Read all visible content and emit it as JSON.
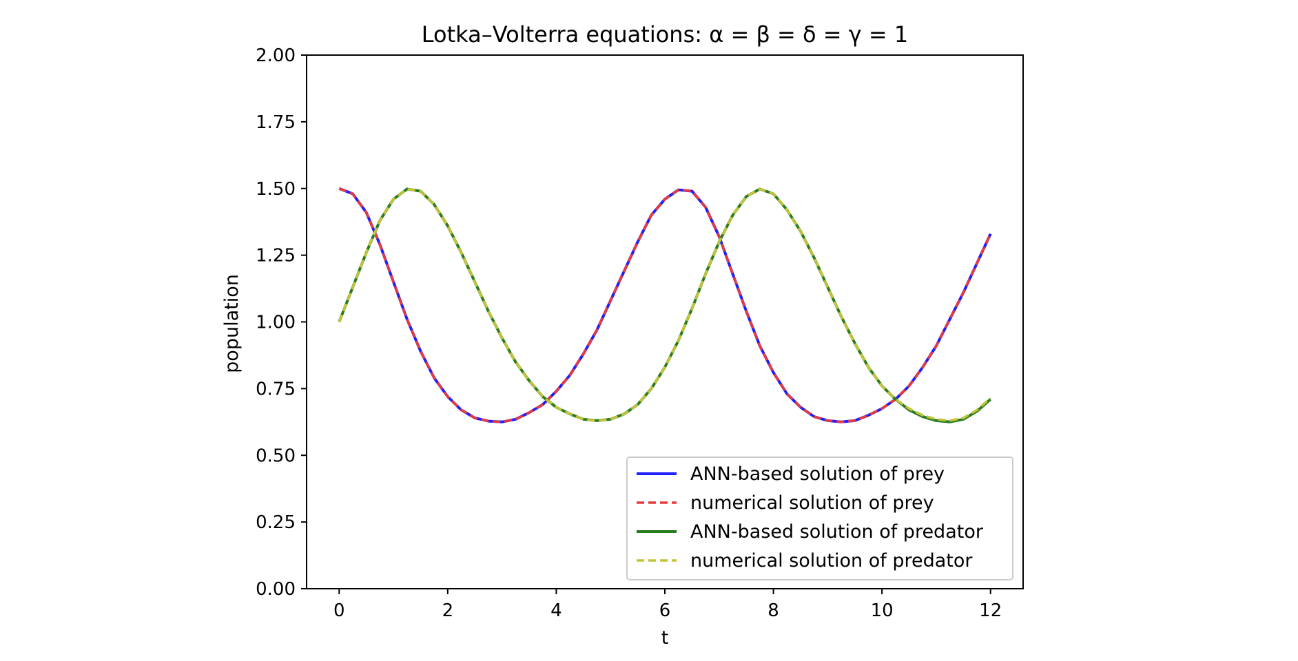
{
  "chart_data": {
    "type": "line",
    "title": "Lotka–Volterra equations: α = β = δ = γ = 1",
    "xlabel": "t",
    "ylabel": "population",
    "xlim": [
      -0.6,
      12.6
    ],
    "ylim": [
      0,
      2
    ],
    "xticks": [
      0,
      2,
      4,
      6,
      8,
      10,
      12
    ],
    "yticks": [
      0.0,
      0.25,
      0.5,
      0.75,
      1.0,
      1.25,
      1.5,
      1.75,
      2.0
    ],
    "ytick_labels": [
      "0.00",
      "0.25",
      "0.50",
      "0.75",
      "1.00",
      "1.25",
      "1.50",
      "1.75",
      "2.00"
    ],
    "grid": false,
    "legend_position": "lower-right",
    "x": [
      0,
      0.25,
      0.5,
      0.75,
      1.0,
      1.25,
      1.5,
      1.75,
      2.0,
      2.25,
      2.5,
      2.75,
      3.0,
      3.25,
      3.5,
      3.75,
      4.0,
      4.25,
      4.5,
      4.75,
      5.0,
      5.25,
      5.5,
      5.75,
      6.0,
      6.25,
      6.5,
      6.75,
      7.0,
      7.25,
      7.5,
      7.75,
      8.0,
      8.25,
      8.5,
      8.75,
      9.0,
      9.25,
      9.5,
      9.75,
      10.0,
      10.25,
      10.5,
      10.75,
      11.0,
      11.25,
      11.5,
      11.75,
      12.0
    ],
    "series": [
      {
        "name": "ANN-based solution of prey",
        "color": "#1f1fff",
        "style": "solid",
        "values": [
          1.5,
          1.48,
          1.41,
          1.29,
          1.15,
          1.01,
          0.89,
          0.79,
          0.72,
          0.67,
          0.64,
          0.628,
          0.625,
          0.635,
          0.66,
          0.69,
          0.74,
          0.8,
          0.88,
          0.97,
          1.08,
          1.19,
          1.3,
          1.4,
          1.46,
          1.495,
          1.49,
          1.43,
          1.32,
          1.18,
          1.04,
          0.91,
          0.81,
          0.73,
          0.68,
          0.645,
          0.63,
          0.625,
          0.63,
          0.65,
          0.675,
          0.71,
          0.76,
          0.83,
          0.91,
          1.01,
          1.11,
          1.22,
          1.33
        ]
      },
      {
        "name": "numerical solution of prey",
        "color": "#e83a3a",
        "style": "dashed",
        "values": [
          1.5,
          1.48,
          1.41,
          1.29,
          1.15,
          1.01,
          0.89,
          0.79,
          0.72,
          0.67,
          0.64,
          0.628,
          0.625,
          0.635,
          0.66,
          0.69,
          0.74,
          0.8,
          0.88,
          0.97,
          1.08,
          1.19,
          1.3,
          1.4,
          1.46,
          1.495,
          1.49,
          1.43,
          1.32,
          1.18,
          1.04,
          0.91,
          0.81,
          0.73,
          0.68,
          0.645,
          0.63,
          0.625,
          0.63,
          0.65,
          0.675,
          0.71,
          0.76,
          0.83,
          0.91,
          1.01,
          1.11,
          1.22,
          1.33
        ]
      },
      {
        "name": "ANN-based solution of predator",
        "color": "#2a7d1f",
        "style": "solid",
        "values": [
          1.0,
          1.13,
          1.26,
          1.38,
          1.46,
          1.498,
          1.49,
          1.44,
          1.36,
          1.26,
          1.15,
          1.04,
          0.94,
          0.85,
          0.78,
          0.72,
          0.68,
          0.655,
          0.635,
          0.63,
          0.635,
          0.655,
          0.69,
          0.75,
          0.83,
          0.93,
          1.05,
          1.18,
          1.3,
          1.4,
          1.47,
          1.498,
          1.48,
          1.42,
          1.34,
          1.24,
          1.13,
          1.02,
          0.92,
          0.83,
          0.76,
          0.71,
          0.67,
          0.645,
          0.63,
          0.625,
          0.635,
          0.665,
          0.71
        ]
      },
      {
        "name": "numerical solution of predator",
        "color": "#c4c43a",
        "style": "dashed",
        "values": [
          1.0,
          1.13,
          1.26,
          1.38,
          1.46,
          1.498,
          1.49,
          1.44,
          1.36,
          1.26,
          1.15,
          1.04,
          0.94,
          0.85,
          0.78,
          0.72,
          0.68,
          0.655,
          0.635,
          0.63,
          0.635,
          0.655,
          0.69,
          0.75,
          0.83,
          0.93,
          1.05,
          1.18,
          1.3,
          1.4,
          1.47,
          1.498,
          1.48,
          1.42,
          1.34,
          1.24,
          1.13,
          1.02,
          0.92,
          0.83,
          0.76,
          0.71,
          0.675,
          0.65,
          0.635,
          0.63,
          0.64,
          0.67,
          0.715
        ]
      }
    ]
  }
}
